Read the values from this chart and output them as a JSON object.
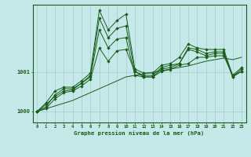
{
  "title": "Graphe pression niveau de la mer (hPa)",
  "background_color": "#c5e8e8",
  "grid_color": "#a8cccc",
  "line_color": "#1a5c1a",
  "ylim": [
    999.72,
    1002.72
  ],
  "xlim": [
    -0.5,
    23.5
  ],
  "yticks": [
    1000,
    1001
  ],
  "xticks": [
    0,
    1,
    2,
    3,
    4,
    5,
    6,
    7,
    8,
    9,
    10,
    11,
    12,
    13,
    14,
    15,
    16,
    17,
    18,
    19,
    20,
    21,
    22,
    23
  ],
  "x": [
    0,
    1,
    2,
    3,
    4,
    5,
    6,
    7,
    8,
    9,
    10,
    11,
    12,
    13,
    14,
    15,
    16,
    17,
    18,
    19,
    20,
    21,
    22,
    23
  ],
  "series1": [
    1000.0,
    1000.08,
    1000.32,
    1000.48,
    1000.52,
    1000.65,
    1000.82,
    1001.62,
    1001.28,
    1001.55,
    1001.58,
    1001.02,
    1000.88,
    1000.88,
    1001.02,
    1001.07,
    1001.18,
    1001.22,
    1001.38,
    1001.38,
    1001.42,
    1001.42,
    1000.92,
    1001.02
  ],
  "series2": [
    1000.0,
    1000.18,
    1000.38,
    1000.52,
    1000.55,
    1000.72,
    1000.88,
    1002.08,
    1001.62,
    1001.85,
    1001.88,
    1000.92,
    1000.88,
    1000.88,
    1001.08,
    1001.12,
    1001.22,
    1001.58,
    1001.52,
    1001.42,
    1001.48,
    1001.48,
    1000.88,
    1001.02
  ],
  "series3": [
    1000.0,
    1000.12,
    1000.42,
    1000.58,
    1000.58,
    1000.72,
    1000.92,
    1002.38,
    1001.88,
    1002.12,
    1002.18,
    1001.02,
    1000.92,
    1000.92,
    1001.12,
    1001.18,
    1001.22,
    1001.62,
    1001.58,
    1001.48,
    1001.52,
    1001.52,
    1000.88,
    1001.08
  ],
  "series4": [
    1000.0,
    1000.22,
    1000.52,
    1000.62,
    1000.62,
    1000.78,
    1000.98,
    1002.58,
    1002.08,
    1002.32,
    1002.48,
    1001.08,
    1000.98,
    1000.98,
    1001.18,
    1001.22,
    1001.38,
    1001.72,
    1001.62,
    1001.58,
    1001.58,
    1001.58,
    1000.92,
    1001.12
  ],
  "trend": [
    1000.0,
    1000.07,
    1000.14,
    1000.21,
    1000.28,
    1000.38,
    1000.48,
    1000.58,
    1000.68,
    1000.78,
    1000.88,
    1000.92,
    1000.96,
    1001.0,
    1001.04,
    1001.08,
    1001.12,
    1001.16,
    1001.22,
    1001.28,
    1001.32,
    1001.36,
    1001.32,
    1001.38
  ]
}
